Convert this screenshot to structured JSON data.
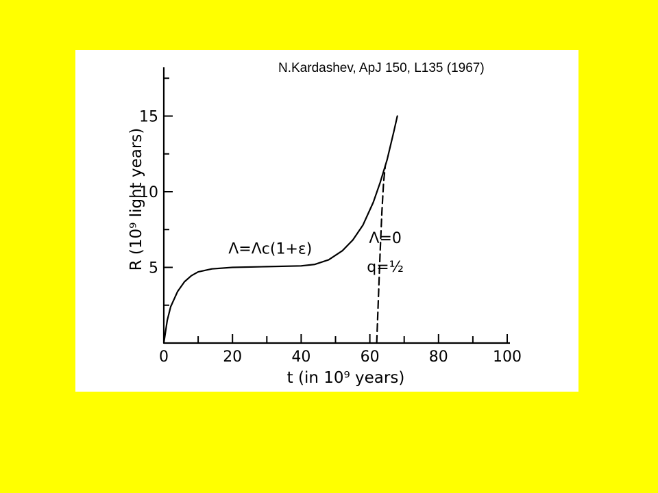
{
  "colors": {
    "background": "#ffff00",
    "figure": "#ffffff",
    "ink": "#000000"
  },
  "citation": "N.Kardashev, ApJ 150, L135 (1967)",
  "chart_data": {
    "type": "line",
    "xlabel": "t (in 10⁹ years)",
    "ylabel": "R (10⁹ light years)",
    "xlim": [
      0,
      100
    ],
    "ylim": [
      0,
      18
    ],
    "x_ticks": [
      0,
      20,
      40,
      60,
      80,
      100
    ],
    "y_ticks": [
      5,
      10,
      15
    ],
    "series": [
      {
        "name": "Λ=Λc(1+ε)",
        "style": "solid",
        "points": [
          [
            0,
            0
          ],
          [
            1,
            1.5
          ],
          [
            2,
            2.4
          ],
          [
            4,
            3.4
          ],
          [
            6,
            4.05
          ],
          [
            8,
            4.45
          ],
          [
            10,
            4.7
          ],
          [
            14,
            4.9
          ],
          [
            20,
            5.0
          ],
          [
            30,
            5.05
          ],
          [
            40,
            5.1
          ],
          [
            44,
            5.2
          ],
          [
            48,
            5.5
          ],
          [
            52,
            6.1
          ],
          [
            55,
            6.8
          ],
          [
            58,
            7.8
          ],
          [
            61,
            9.3
          ],
          [
            63,
            10.6
          ],
          [
            65,
            12.1
          ],
          [
            67,
            14.0
          ],
          [
            68,
            15.0
          ]
        ]
      },
      {
        "name": "Λ=0  q=1/2",
        "style": "dashed",
        "points": [
          [
            62,
            0
          ],
          [
            62.5,
            3.0
          ],
          [
            63,
            6.0
          ],
          [
            63.5,
            8.6
          ],
          [
            64,
            10.6
          ],
          [
            64.5,
            11.7
          ]
        ]
      }
    ],
    "annotations": [
      {
        "label": "Λ=Λc(1+ε)",
        "x": 31,
        "y": 5.9
      },
      {
        "label": "Λ=0",
        "x": 64.5,
        "y": 6.6
      },
      {
        "label": "q=½",
        "x": 64.5,
        "y": 4.7
      }
    ]
  }
}
